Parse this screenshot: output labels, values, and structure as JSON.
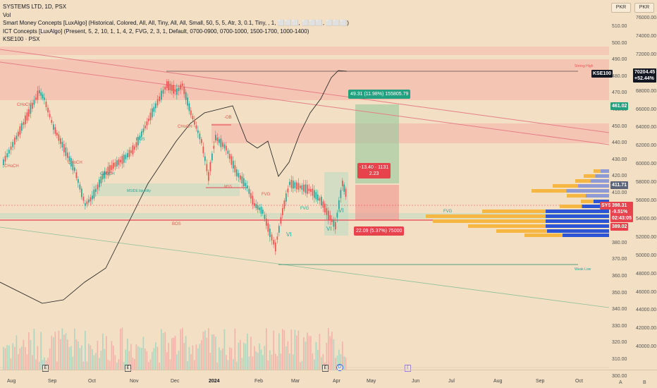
{
  "legend": {
    "title": "SYSTEMS LTD, 1D, PSX",
    "vol": "Vol",
    "smc": "Smart Money Concepts [LuxAlgo] (Historical, Colored, All, All, Tiny, All, All, Small, 50, 5, 5, Atr, 3, 0.1, Tiny, , 1, ⬜⬜⬜, ⬜⬜⬜, ⬜⬜⬜)",
    "ict": "ICT Concepts [LuxAlgo] (Present, 5, 2, 10, 1, 1, 4, 2, FVG, 2, 3, 1, Default, 0700-0900, 0700-1000, 1500-1700, 1000-1400)",
    "kse": "KSE100 · PSX"
  },
  "axis_buttons": {
    "left": "PKR",
    "right": "PKR"
  },
  "left_scale": [
    "510.00",
    "500.00",
    "490.00",
    "480.00",
    "470.00",
    "460.00",
    "450.00",
    "440.00",
    "430.00",
    "420.00",
    "410.00",
    "400.00",
    "390.00",
    "380.00",
    "370.00",
    "360.00",
    "350.00",
    "340.00",
    "330.00",
    "320.00",
    "310.00",
    "300.00"
  ],
  "right_scale": [
    "76000.00",
    "74000.00",
    "72000.00",
    "70000.00",
    "68000.00",
    "66000.00",
    "64000.00",
    "62000.00",
    "60000.00",
    "58000.00",
    "56000.00",
    "54000.00",
    "52000.00",
    "50000.00",
    "48000.00",
    "46000.00",
    "44000.00",
    "42000.00",
    "40000.00"
  ],
  "price_tags": {
    "kse_label": "KSE100",
    "kse_value": "70204.45",
    "kse_change": "+52.44%",
    "level_461": "461.02",
    "level_411": "411.71",
    "sys_label": "SYS",
    "sys_price": "398.31",
    "sys_change": "-9.51%",
    "sys_timer": "02:43:05",
    "level_389": "389.02"
  },
  "measures": {
    "up": "49.31 (11.98%) 155805.79",
    "mid_line1": "-13.40 · 1131",
    "mid_line2": "2.23",
    "down": "22.09 (5.37%) 75000"
  },
  "annotations": {
    "bos": "BOS",
    "choch": "CHoCH",
    "ob": "-OB",
    "fvg": "FVG",
    "vi": "VI",
    "strong_high": "Strong High",
    "weak_low": "Weak Low",
    "mss": "MSS",
    "liquidity": "MSIDE liquidity"
  },
  "x_axis": {
    "labels": [
      "Aug",
      "Sep",
      "Oct",
      "Nov",
      "Dec",
      "2024",
      "Feb",
      "Mar",
      "Apr",
      "May",
      "Jun",
      "Jul",
      "Aug",
      "Sep",
      "Oct"
    ],
    "bold": [
      "2024"
    ]
  },
  "event_markers": [
    "E",
    "E",
    "E",
    "D",
    "E"
  ],
  "corner_buttons": {
    "auto": "A",
    "b": "B"
  },
  "colors": {
    "background": "#f2dfc4",
    "bull": "#26a69a",
    "bear": "#ef5350",
    "zone_red": "#f5b4a8",
    "zone_green": "#b9dbc2",
    "kse_line": "#1a1a1a",
    "tag_teal": "#22a07f",
    "tag_red": "#e8424d",
    "tag_dark": "#131722"
  }
}
